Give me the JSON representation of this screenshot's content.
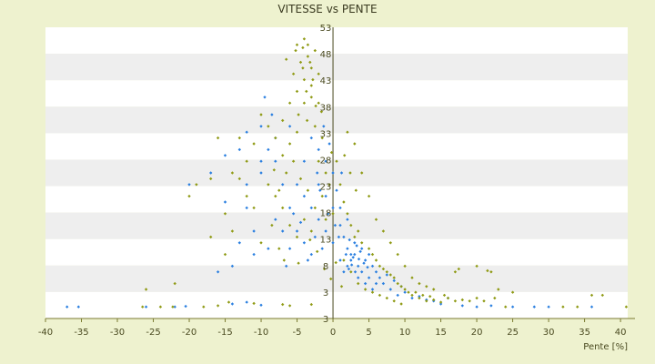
{
  "chart_data": {
    "type": "scatter",
    "title": "VITESSE vs PENTE",
    "xlabel": "Pente [%]",
    "ylabel": "",
    "xlim": [
      -40,
      41
    ],
    "ylim": [
      3,
      53
    ],
    "x_ticks": [
      "-40",
      "-35",
      "-30",
      "-25",
      "-20",
      "-15",
      "-10",
      "-5",
      "0",
      "5",
      "10",
      "15",
      "20",
      "25",
      "30",
      "35",
      "40"
    ],
    "y_ticks": [
      "3",
      "3",
      "8",
      "13",
      "18",
      "23",
      "28",
      "33",
      "38",
      "43",
      "48",
      "53"
    ],
    "grid": "horizontal bands",
    "legend": "none",
    "colors": {
      "background": "#eef2cf",
      "plot_band_light": "#ffffff",
      "plot_band_dark": "#eeeeee",
      "series_blue": "#2a7fe0",
      "series_olive": "#8f9a14",
      "axis": "#7a7a30"
    },
    "series": [
      {
        "color": "blue",
        "points": [
          [
            -37,
            5
          ],
          [
            -35.4,
            5
          ],
          [
            -26,
            5
          ],
          [
            -22,
            5
          ],
          [
            -20.5,
            5.1
          ],
          [
            -14,
            5.5
          ],
          [
            -12,
            5.8
          ],
          [
            -10,
            5.3
          ],
          [
            -20,
            26
          ],
          [
            -17,
            28
          ],
          [
            -15,
            31
          ],
          [
            -13,
            32
          ],
          [
            -12,
            35
          ],
          [
            -10,
            36
          ],
          [
            -8,
            34
          ],
          [
            -6,
            36
          ],
          [
            -9.5,
            41
          ],
          [
            -8.5,
            38
          ],
          [
            -12,
            22
          ],
          [
            -15,
            23
          ],
          [
            -10,
            28
          ],
          [
            -8,
            30
          ],
          [
            -5,
            26
          ],
          [
            -4,
            24
          ],
          [
            -3,
            22
          ],
          [
            -2,
            20
          ],
          [
            -1,
            18
          ],
          [
            0,
            16
          ],
          [
            -6,
            22
          ],
          [
            -5,
            18
          ],
          [
            -4,
            16
          ],
          [
            -3,
            14
          ],
          [
            -2,
            26
          ],
          [
            -1,
            24
          ],
          [
            0,
            22
          ],
          [
            0,
            28
          ],
          [
            -1,
            30
          ],
          [
            -2,
            32
          ],
          [
            -7,
            18
          ],
          [
            -8,
            20
          ],
          [
            -11,
            14
          ],
          [
            -12,
            26
          ],
          [
            -6.5,
            12
          ],
          [
            -3.5,
            13
          ],
          [
            -2.5,
            17
          ],
          [
            -1.5,
            15
          ],
          [
            1,
            19
          ],
          [
            1.5,
            17
          ],
          [
            2,
            15
          ],
          [
            2.5,
            13
          ],
          [
            3,
            14
          ],
          [
            3.5,
            12
          ],
          [
            4,
            11
          ],
          [
            4.5,
            13
          ],
          [
            5,
            10
          ],
          [
            5.5,
            12
          ],
          [
            6,
            9
          ],
          [
            1,
            13
          ],
          [
            1.5,
            11
          ],
          [
            2,
            12
          ],
          [
            2.5,
            14
          ],
          [
            3,
            16
          ],
          [
            3.5,
            10
          ],
          [
            4,
            15
          ],
          [
            4.5,
            9
          ],
          [
            5,
            14
          ],
          [
            5.5,
            8
          ],
          [
            6,
            11
          ],
          [
            0.5,
            25
          ],
          [
            1,
            22
          ],
          [
            1.2,
            28
          ],
          [
            2,
            20
          ],
          [
            6.5,
            10
          ],
          [
            7,
            9
          ],
          [
            8,
            8
          ],
          [
            9,
            7
          ],
          [
            10,
            7.5
          ],
          [
            11,
            6.5
          ],
          [
            12,
            6.8
          ],
          [
            13,
            6.2
          ],
          [
            14,
            6
          ],
          [
            15,
            5.5
          ],
          [
            16,
            6.5
          ],
          [
            18,
            5.2
          ],
          [
            20,
            5
          ],
          [
            22,
            5.2
          ],
          [
            25,
            5
          ],
          [
            28,
            5
          ],
          [
            30,
            5
          ],
          [
            36,
            5
          ],
          [
            -16,
            11
          ],
          [
            -10,
            30
          ],
          [
            -9,
            32
          ],
          [
            -4,
            30
          ],
          [
            -3,
            34
          ],
          [
            -7,
            26
          ],
          [
            -2.2,
            28
          ],
          [
            -1.3,
            36
          ],
          [
            -0.5,
            33
          ],
          [
            2.3,
            16.5
          ],
          [
            2.8,
            13.5
          ],
          [
            3.3,
            15.5
          ],
          [
            3.8,
            14.5
          ],
          [
            4.3,
            12.5
          ],
          [
            1.8,
            14
          ],
          [
            2.2,
            11.5
          ],
          [
            3.6,
            13.2
          ],
          [
            4.8,
            11.8
          ],
          [
            2.6,
            12.2
          ],
          [
            3.1,
            11
          ],
          [
            0.3,
            19
          ],
          [
            0.8,
            17
          ],
          [
            -0.7,
            21
          ],
          [
            -1.8,
            25
          ],
          [
            -4.5,
            19.5
          ],
          [
            -5.5,
            21
          ],
          [
            -6,
            15
          ],
          [
            -9,
            15
          ],
          [
            -14,
            12
          ],
          [
            -13,
            16
          ],
          [
            -11,
            18
          ],
          [
            8.5,
            9.5
          ],
          [
            9.5,
            8.5
          ],
          [
            7.5,
            10.5
          ]
        ]
      },
      {
        "color": "olive",
        "points": [
          [
            -26.5,
            5
          ],
          [
            -24,
            5
          ],
          [
            -22.3,
            5
          ],
          [
            -18,
            5
          ],
          [
            -16,
            5.2
          ],
          [
            -14.5,
            5.8
          ],
          [
            -11,
            5.6
          ],
          [
            -7,
            5.4
          ],
          [
            -6,
            5.2
          ],
          [
            -3,
            5.4
          ],
          [
            -26,
            8
          ],
          [
            -22,
            9
          ],
          [
            -17,
            17
          ],
          [
            -15,
            21
          ],
          [
            -14,
            18
          ],
          [
            -13,
            27
          ],
          [
            -11,
            22
          ],
          [
            -10,
            16
          ],
          [
            -16,
            34
          ],
          [
            -14,
            28
          ],
          [
            -12,
            24
          ],
          [
            -9,
            26
          ],
          [
            -8,
            24
          ],
          [
            -7,
            22
          ],
          [
            -6,
            19
          ],
          [
            -5,
            17
          ],
          [
            -4,
            20
          ],
          [
            -3,
            18
          ],
          [
            -5,
            50
          ],
          [
            -4,
            51
          ],
          [
            -4.5,
            47
          ],
          [
            -3.5,
            48
          ],
          [
            -3,
            46
          ],
          [
            -2.5,
            49
          ],
          [
            -4,
            44
          ],
          [
            -3,
            43
          ],
          [
            -2,
            45
          ],
          [
            -5,
            42
          ],
          [
            -4,
            40
          ],
          [
            -3,
            41
          ],
          [
            -2,
            40
          ],
          [
            -6,
            40
          ],
          [
            -5.5,
            45
          ],
          [
            -3.7,
            42
          ],
          [
            -2.8,
            44
          ],
          [
            -4.2,
            46
          ],
          [
            -3.2,
            47
          ],
          [
            -4.8,
            38
          ],
          [
            -3.6,
            37
          ],
          [
            -2.5,
            36
          ],
          [
            -1.5,
            34
          ],
          [
            -5,
            35
          ],
          [
            -6,
            33
          ],
          [
            -7,
            31
          ],
          [
            -6.5,
            28
          ],
          [
            -5.5,
            30
          ],
          [
            -2,
            30
          ],
          [
            -1,
            28
          ],
          [
            -0.5,
            26
          ],
          [
            -1.5,
            24
          ],
          [
            -2.5,
            22
          ],
          [
            -3.5,
            25
          ],
          [
            -4.5,
            27
          ],
          [
            -1,
            20
          ],
          [
            0,
            21
          ],
          [
            0.5,
            30
          ],
          [
            1,
            26
          ],
          [
            1.5,
            23
          ],
          [
            2,
            21
          ],
          [
            2.5,
            19
          ],
          [
            3,
            17
          ],
          [
            3.5,
            18
          ],
          [
            4,
            16
          ],
          [
            5,
            15
          ],
          [
            5.5,
            14
          ],
          [
            6,
            13
          ],
          [
            6.5,
            12
          ],
          [
            7,
            11.5
          ],
          [
            7.5,
            11
          ],
          [
            8,
            10.5
          ],
          [
            8.5,
            10
          ],
          [
            9,
            9
          ],
          [
            9.5,
            8.5
          ],
          [
            10,
            8
          ],
          [
            10.5,
            7.5
          ],
          [
            11,
            7
          ],
          [
            11.5,
            7.5
          ],
          [
            12,
            6.5
          ],
          [
            12.5,
            7
          ],
          [
            13,
            6
          ],
          [
            13.5,
            6.8
          ],
          [
            14,
            6.2
          ],
          [
            15,
            5.8
          ],
          [
            15.5,
            7
          ],
          [
            16,
            6.5
          ],
          [
            17,
            6
          ],
          [
            18,
            6.2
          ],
          [
            19,
            6
          ],
          [
            20,
            6.5
          ],
          [
            21,
            6
          ],
          [
            17,
            11
          ],
          [
            22,
            11
          ],
          [
            20,
            12
          ],
          [
            17.5,
            11.5
          ],
          [
            21.5,
            11.2
          ],
          [
            22.5,
            6.5
          ],
          [
            23,
            8
          ],
          [
            25,
            7.5
          ],
          [
            36,
            7
          ],
          [
            37.5,
            7
          ],
          [
            40.8,
            5
          ],
          [
            32,
            5
          ],
          [
            34,
            5
          ],
          [
            24,
            5
          ],
          [
            2,
            35
          ],
          [
            3,
            33
          ],
          [
            4,
            28
          ],
          [
            5,
            24
          ],
          [
            6,
            20
          ],
          [
            7,
            18
          ],
          [
            8,
            16
          ],
          [
            9,
            14
          ],
          [
            10,
            12
          ],
          [
            11,
            10
          ],
          [
            12,
            9
          ],
          [
            13,
            8.5
          ],
          [
            14,
            8
          ],
          [
            1.5,
            13
          ],
          [
            2.5,
            11
          ],
          [
            3.5,
            9
          ],
          [
            4.5,
            8
          ],
          [
            5.5,
            7.5
          ],
          [
            6.5,
            7
          ],
          [
            7.5,
            6.5
          ],
          [
            8.5,
            6
          ],
          [
            9.5,
            5.5
          ],
          [
            -8,
            34
          ],
          [
            -9,
            36
          ],
          [
            -10,
            38
          ],
          [
            -11,
            33
          ],
          [
            -12,
            30
          ],
          [
            -13,
            34
          ],
          [
            -15,
            14
          ],
          [
            -17,
            27
          ],
          [
            -19,
            26
          ],
          [
            -20,
            24
          ],
          [
            -8.5,
            19
          ],
          [
            -7.5,
            15
          ],
          [
            -6.8,
            13
          ],
          [
            -4.8,
            12.5
          ],
          [
            -1.2,
            11.5
          ],
          [
            0.4,
            12.6
          ],
          [
            -0.3,
            9.8
          ],
          [
            1.2,
            8.5
          ],
          [
            -2.2,
            14.5
          ],
          [
            -3.2,
            16.5
          ],
          [
            2.4,
            28
          ],
          [
            3.2,
            25
          ],
          [
            1.6,
            31
          ],
          [
            -0.2,
            31.5
          ],
          [
            -1.6,
            38.5
          ],
          [
            -2.4,
            39.5
          ],
          [
            -5.2,
            49
          ],
          [
            -4.2,
            49.5
          ],
          [
            -3.5,
            50
          ],
          [
            -6.5,
            47.5
          ],
          [
            -7,
            37
          ],
          [
            -7.5,
            25
          ],
          [
            -8.2,
            28.5
          ]
        ]
      }
    ]
  }
}
